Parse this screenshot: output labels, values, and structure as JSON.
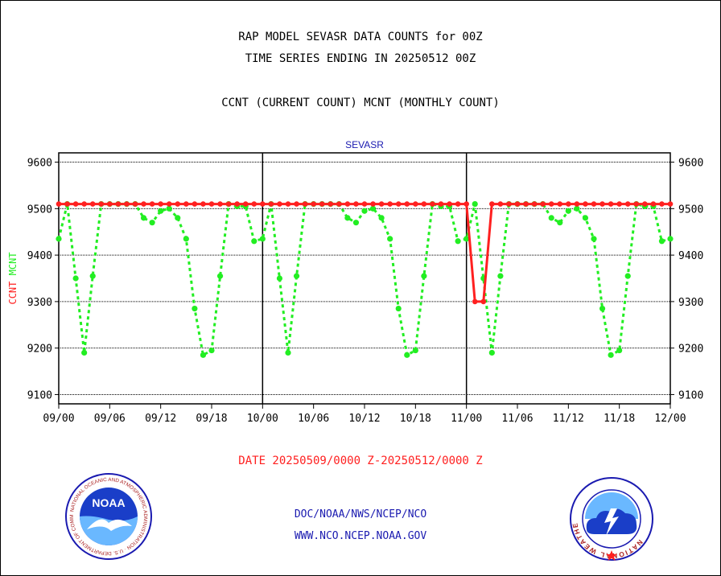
{
  "header": {
    "title_line1": "RAP MODEL SEVASR DATA COUNTS for 00Z",
    "title_line2": "TIME SERIES ENDING IN 20250512 00Z",
    "subtitle": "CCNT (CURRENT COUNT) MCNT (MONTHLY COUNT)"
  },
  "chart_data": {
    "type": "line",
    "title": "SEVASR",
    "ylabel_ccnt": "CCNT",
    "ylabel_mcnt": "MCNT",
    "ylim": [
      9080,
      9620
    ],
    "yticks": [
      "9600",
      "9500",
      "9400",
      "9300",
      "9200",
      "9100"
    ],
    "ytick_values": [
      9600,
      9500,
      9400,
      9300,
      9200,
      9100
    ],
    "xticks": [
      "09/00",
      "09/06",
      "09/12",
      "09/18",
      "10/00",
      "10/06",
      "10/12",
      "10/18",
      "11/00",
      "11/06",
      "11/12",
      "11/18",
      "12/00"
    ],
    "xlim": [
      0,
      72
    ],
    "grid": true,
    "colors": {
      "ccnt": "#ff2020",
      "mcnt": "#22ee22",
      "axis": "#000000",
      "title": "#1a1ab0"
    },
    "series": [
      {
        "name": "CCNT",
        "x": [
          0,
          1,
          2,
          3,
          4,
          5,
          6,
          7,
          8,
          9,
          10,
          11,
          12,
          13,
          14,
          15,
          16,
          17,
          18,
          19,
          20,
          21,
          22,
          23,
          24,
          25,
          26,
          27,
          28,
          29,
          30,
          31,
          32,
          33,
          34,
          35,
          36,
          37,
          38,
          39,
          40,
          41,
          42,
          43,
          44,
          45,
          46,
          47,
          48,
          49,
          50,
          51,
          52,
          53,
          54,
          55,
          56,
          57,
          58,
          59,
          60,
          61,
          62,
          63,
          64,
          65,
          66,
          67,
          68,
          69,
          70,
          71,
          72
        ],
        "values": [
          9510,
          9510,
          9510,
          9510,
          9510,
          9510,
          9510,
          9510,
          9510,
          9510,
          9510,
          9510,
          9510,
          9510,
          9510,
          9510,
          9510,
          9510,
          9510,
          9510,
          9510,
          9510,
          9510,
          9510,
          9510,
          9510,
          9510,
          9510,
          9510,
          9510,
          9510,
          9510,
          9510,
          9510,
          9510,
          9510,
          9510,
          9510,
          9510,
          9510,
          9510,
          9510,
          9510,
          9510,
          9510,
          9510,
          9510,
          9510,
          9510,
          9300,
          9300,
          9510,
          9510,
          9510,
          9510,
          9510,
          9510,
          9510,
          9510,
          9510,
          9510,
          9510,
          9510,
          9510,
          9510,
          9510,
          9510,
          9510,
          9510,
          9510,
          9510,
          9510,
          9510
        ]
      },
      {
        "name": "MCNT",
        "x": [
          0,
          1,
          2,
          3,
          4,
          5,
          6,
          7,
          8,
          9,
          10,
          11,
          12,
          13,
          14,
          15,
          16,
          17,
          18,
          19,
          20,
          21,
          22,
          23,
          24,
          25,
          26,
          27,
          28,
          29,
          30,
          31,
          32,
          33,
          34,
          35,
          36,
          37,
          38,
          39,
          40,
          41,
          42,
          43,
          44,
          45,
          46,
          47,
          48,
          49,
          50,
          51,
          52,
          53,
          54,
          55,
          56,
          57,
          58,
          59,
          60,
          61,
          62,
          63,
          64,
          65,
          66,
          67,
          68,
          69,
          70,
          71,
          72
        ],
        "values": [
          9435,
          9510,
          9350,
          9190,
          9355,
          9510,
          9510,
          9510,
          9510,
          9510,
          9480,
          9470,
          9495,
          9500,
          9480,
          9435,
          9285,
          9185,
          9195,
          9355,
          9510,
          9505,
          9505,
          9430,
          9435,
          9510,
          9350,
          9190,
          9355,
          9510,
          9510,
          9510,
          9510,
          9510,
          9480,
          9470,
          9495,
          9500,
          9480,
          9435,
          9285,
          9185,
          9195,
          9355,
          9510,
          9505,
          9505,
          9430,
          9435,
          9510,
          9350,
          9190,
          9355,
          9510,
          9510,
          9510,
          9510,
          9510,
          9480,
          9470,
          9495,
          9500,
          9480,
          9435,
          9285,
          9185,
          9195,
          9355,
          9510,
          9505,
          9505,
          9430,
          9435
        ]
      }
    ]
  },
  "footer": {
    "date_range": "DATE 20250509/0000 Z-20250512/0000 Z",
    "link1": "DOC/NOAA/NWS/NCEP/NCO",
    "link2": "WWW.NCO.NCEP.NOAA.GOV"
  },
  "logos": {
    "noaa_name": "NOAA",
    "noaa_ring_text": "NATIONAL OCEANIC AND ATMOSPHERIC ADMINISTRATION · U.S. DEPARTMENT OF COMMERCE",
    "nws_ring_text": "NATIONAL WEATHER SERVICE"
  }
}
